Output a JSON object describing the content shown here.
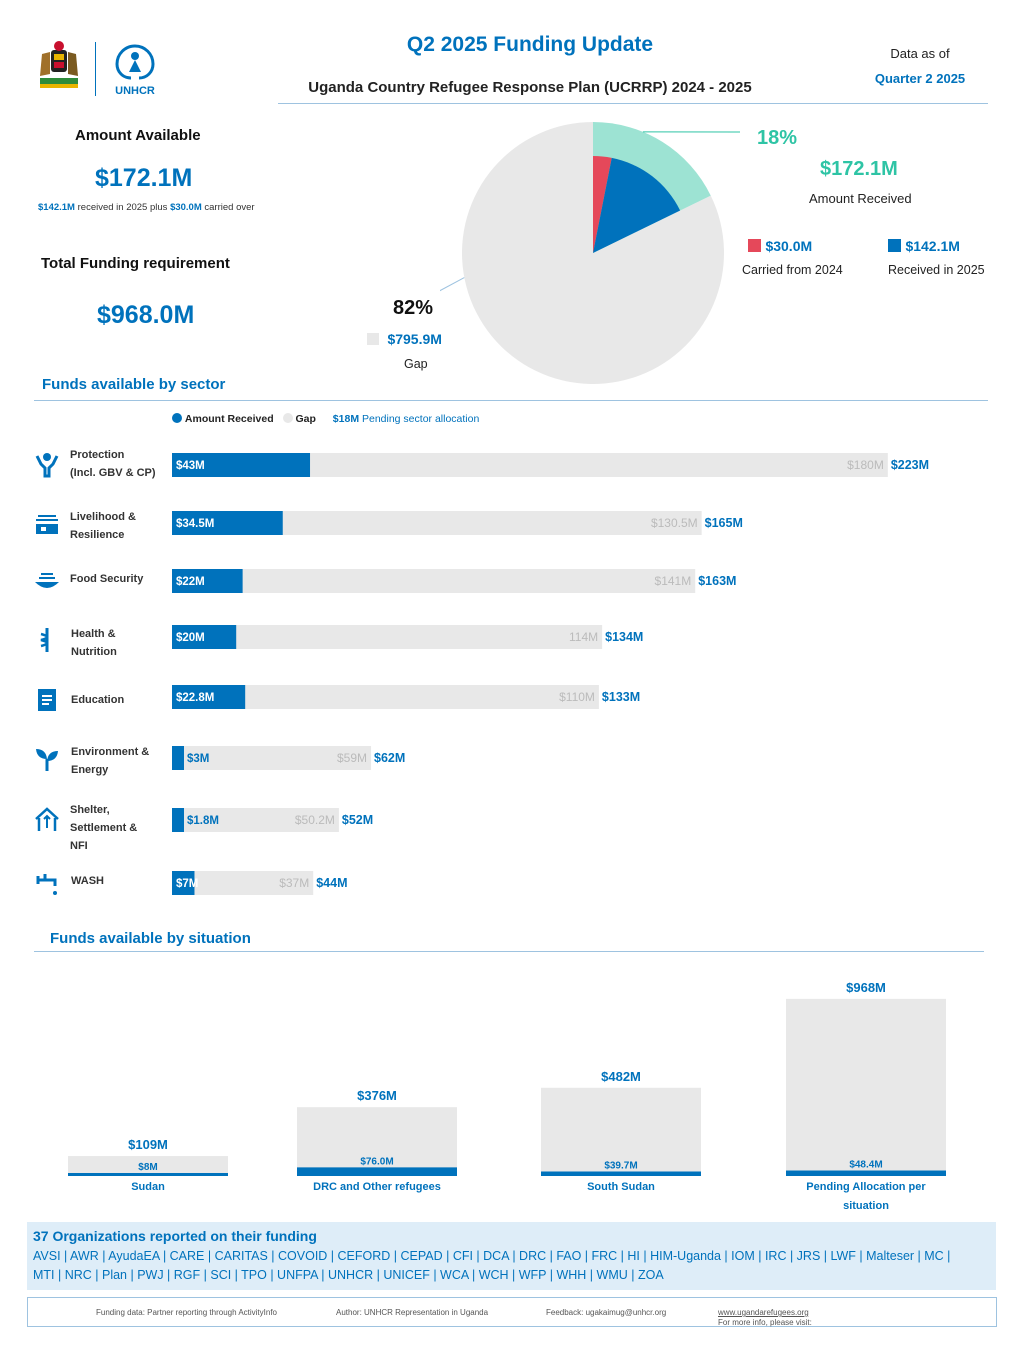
{
  "header": {
    "title": "Q2 2025 Funding Update",
    "subtitle": "Uganda Country Refugee Response Plan (UCRRP) 2024 - 2025",
    "data_as_of_label": "Data as of",
    "data_as_of_value": "Quarter 2 2025",
    "logo_text": "UNHCR"
  },
  "summary": {
    "amount_available_label": "Amount Available",
    "amount_available_value": "$172.1M",
    "received_2025": "$142.1M",
    "received_text": "received in 2025 plus",
    "carried_over_value": "$30.0M",
    "carried_over_text": "carried over",
    "total_requirement_label": "Total Funding requirement",
    "total_requirement_value": "$968.0M"
  },
  "pie": {
    "received_pct": "18%",
    "received_value": "$172.1M",
    "received_label": "Amount Received",
    "carried_value": "$30.0M",
    "carried_label": "Carried from 2024",
    "received2025_value": "$142.1M",
    "received2025_label": "Received in 2025",
    "gap_pct": "82%",
    "gap_value": "$795.9M",
    "gap_label": "Gap",
    "colors": {
      "gap": "#e8e8e8",
      "received": "#0072bc",
      "carried": "#e5485a",
      "highlight": "#9de3d3"
    }
  },
  "sector_section": {
    "title": "Funds available by sector",
    "legend_received": "Amount Received",
    "legend_gap": "Gap",
    "pending_value": "$18M",
    "pending_text": "Pending sector allocation"
  },
  "sectors": [
    {
      "line1": "Protection",
      "line2": "(Incl. GBV & CP)",
      "line3": "",
      "icon": "protection-icon",
      "received": 43,
      "gap": 180,
      "total": 223,
      "received_label": "$43M",
      "gap_label": "$180M",
      "total_label": "$223M"
    },
    {
      "line1": "Livelihood &",
      "line2": "Resilience",
      "line3": "",
      "icon": "livelihood-icon",
      "received": 34.5,
      "gap": 130.5,
      "total": 165,
      "received_label": "$34.5M",
      "gap_label": "$130.5M",
      "total_label": "$165M"
    },
    {
      "line1": "Food Security",
      "line2": "",
      "line3": "",
      "icon": "food-icon",
      "received": 22,
      "gap": 141,
      "total": 163,
      "received_label": "$22M",
      "gap_label": "$141M",
      "total_label": "$163M"
    },
    {
      "line1": "Health &",
      "line2": "Nutrition",
      "line3": "",
      "icon": "health-icon",
      "received": 20,
      "gap": 114,
      "total": 134,
      "received_label": "$20M",
      "gap_label": "114M",
      "total_label": "$134M"
    },
    {
      "line1": "Education",
      "line2": "",
      "line3": "",
      "icon": "education-icon",
      "received": 22.8,
      "gap": 110,
      "total": 133,
      "received_label": "$22.8M",
      "gap_label": "$110M",
      "total_label": "$133M"
    },
    {
      "line1": "Environment &",
      "line2": "Energy",
      "line3": "",
      "icon": "environment-icon",
      "received": 3,
      "gap": 59,
      "total": 62,
      "received_label": "$3M",
      "gap_label": "$59M",
      "total_label": "$62M"
    },
    {
      "line1": "Shelter,",
      "line2": "Settlement &",
      "line3": "NFI",
      "icon": "shelter-icon",
      "received": 1.8,
      "gap": 50.2,
      "total": 52,
      "received_label": "$1.8M",
      "gap_label": "$50.2M",
      "total_label": "$52M"
    },
    {
      "line1": "WASH",
      "line2": "",
      "line3": "",
      "icon": "wash-icon",
      "received": 7,
      "gap": 37,
      "total": 44,
      "received_label": "$7M",
      "gap_label": "$37M",
      "total_label": "$44M"
    }
  ],
  "situation_section": {
    "title": "Funds available by situation"
  },
  "situations": [
    {
      "line1": "Sudan",
      "line2": "",
      "total": 109,
      "received": 8,
      "total_label": "$109M",
      "received_label": "$8M"
    },
    {
      "line1": "DRC and Other refugees",
      "line2": "",
      "total": 376,
      "received": 76,
      "total_label": "$376M",
      "received_label": "$76.0M"
    },
    {
      "line1": "South Sudan",
      "line2": "",
      "total": 482,
      "received": 39.7,
      "total_label": "$482M",
      "received_label": "$39.7M"
    },
    {
      "line1": "Pending Allocation per",
      "line2": "situation",
      "total": 968,
      "received": 48.4,
      "total_label": "$968M",
      "received_label": "$48.4M"
    }
  ],
  "orgs": {
    "title": "37 Organizations reported on their funding",
    "line1": "AVSI | AWR | AyudaEA | CARE | CARITAS | COVOID | CEFORD | CEPAD | CFI | DCA | DRC | FAO | FRC | HI | HIM-Uganda | IOM | IRC | JRS | LWF | Malteser | MC |",
    "line2": "MTI | NRC | Plan | PWJ | RGF | SCI | TPO | UNFPA | UNHCR | UNICEF | WCA | WCH | WFP | WHH | WMU | ZOA"
  },
  "footer": {
    "funding_data": "Funding data: Partner reporting through ActivityInfo",
    "author": "Author: UNHCR Representation in Uganda",
    "feedback": "Feedback: ugakaimug@unhcr.org",
    "more_info": "For more info, please visit:",
    "url": "www.ugandarefugees.org"
  },
  "chart_data": [
    {
      "type": "pie",
      "title": "",
      "labels": [
        "Carried from 2024",
        "Received in 2025",
        "Gap"
      ],
      "values": [
        30.0,
        142.1,
        795.9
      ],
      "units": "$M"
    },
    {
      "type": "bar",
      "orientation": "horizontal",
      "title": "Funds available by sector",
      "categories": [
        "Protection (Incl. GBV & CP)",
        "Livelihood & Resilience",
        "Food Security",
        "Health & Nutrition",
        "Education",
        "Environment & Energy",
        "Shelter, Settlement & NFI",
        "WASH"
      ],
      "series": [
        {
          "name": "Amount Received",
          "values": [
            43,
            34.5,
            22,
            20,
            22.8,
            3,
            1.8,
            7
          ]
        },
        {
          "name": "Gap",
          "values": [
            180,
            130.5,
            141,
            114,
            110,
            59,
            50.2,
            37
          ]
        }
      ],
      "stacked": true,
      "units": "$M"
    },
    {
      "type": "bar",
      "title": "Funds available by situation",
      "categories": [
        "Sudan",
        "DRC and Other refugees",
        "South Sudan",
        "Pending Allocation per situation"
      ],
      "series": [
        {
          "name": "",
          "values": [
            109,
            376,
            482,
            968
          ]
        },
        {
          "name": "",
          "values": [
            8,
            76.0,
            39.7,
            48.4
          ]
        }
      ],
      "units": "$M"
    }
  ]
}
